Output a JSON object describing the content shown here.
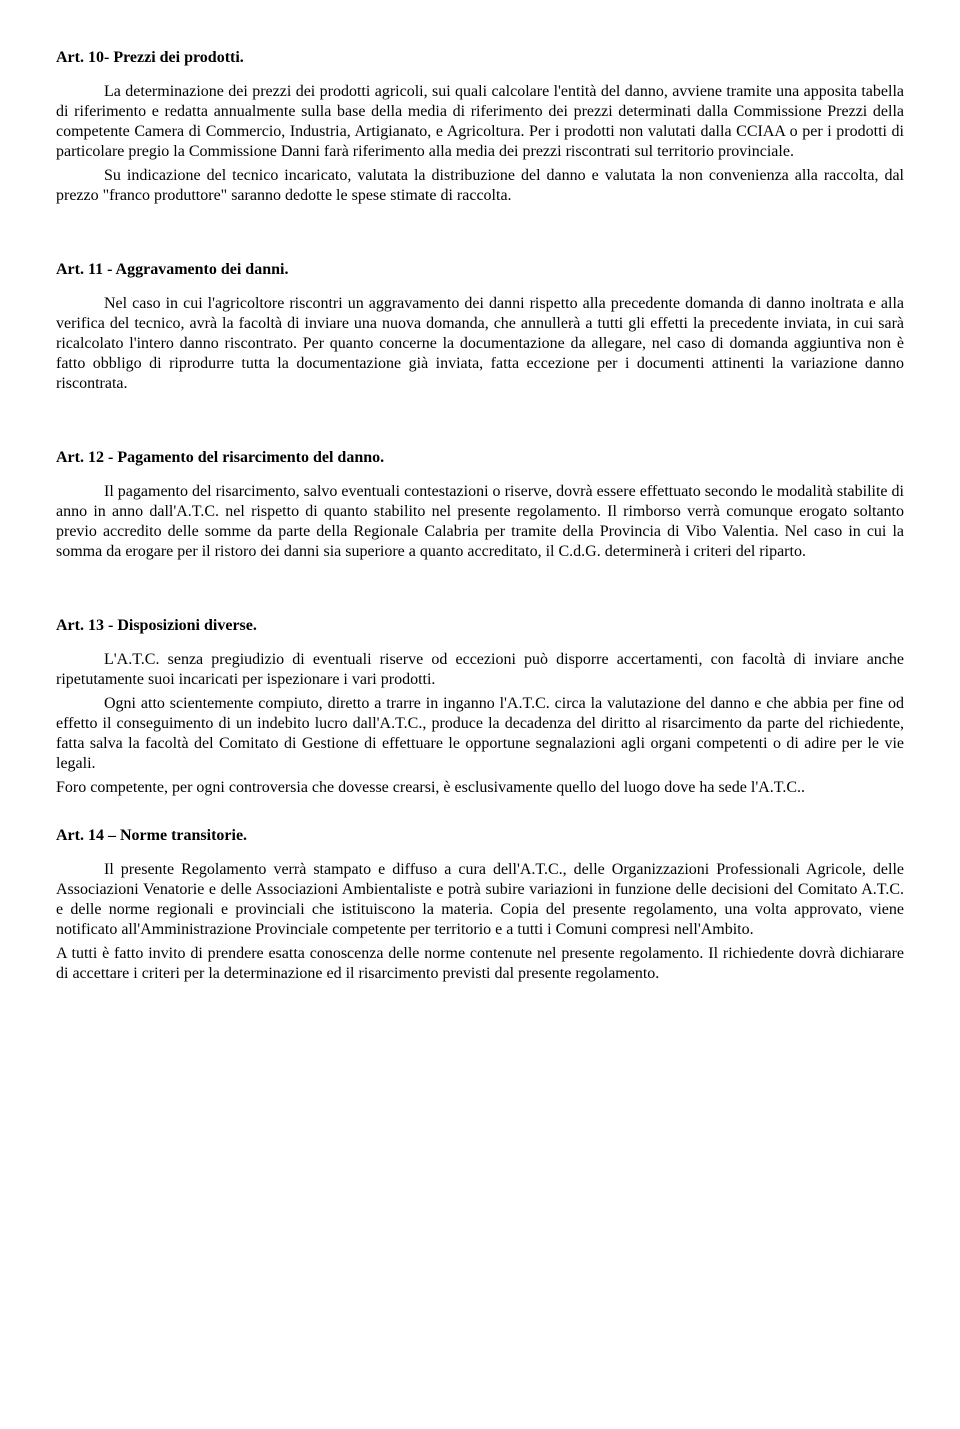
{
  "art10": {
    "title": "Art. 10- Prezzi dei prodotti.",
    "p1": "La determinazione dei prezzi dei prodotti agricoli, sui quali calcolare l'entità del danno, avviene tramite una apposita tabella di riferimento e redatta annualmente sulla base della media di riferimento dei prezzi determinati dalla Commissione Prezzi della competente Camera di Commercio, Industria, Artigianato, e Agricoltura. Per i prodotti non valutati dalla CCIAA o per i prodotti di particolare pregio la Commissione Danni farà riferimento alla media dei  prezzi riscontrati sul territorio provinciale.",
    "p2": "Su indicazione del tecnico incaricato, valutata la distribuzione del danno e valutata la non convenienza alla raccolta, dal prezzo \"franco produttore\" saranno dedotte le spese stimate di raccolta."
  },
  "art11": {
    "title": "Art. 11 - Aggravamento dei danni.",
    "p1": "Nel caso in cui l'agricoltore riscontri un aggravamento dei danni rispetto alla precedente domanda di danno inoltrata e alla verifica del tecnico, avrà la facoltà di inviare una nuova  domanda, che annullerà a tutti gli effetti la precedente inviata, in cui sarà ricalcolato l'intero danno riscontrato. Per quanto concerne la documentazione da allegare, nel caso di domanda aggiuntiva non è fatto obbligo di riprodurre tutta la documentazione già inviata, fatta eccezione per i documenti attinenti la variazione danno riscontrata."
  },
  "art12": {
    "title": "Art. 12 - Pagamento del risarcimento del danno.",
    "p1": "Il pagamento del risarcimento, salvo eventuali contestazioni o riserve, dovrà essere effettuato secondo le modalità stabilite di anno in anno dall'A.T.C. nel rispetto di quanto stabilito nel presente regolamento. Il rimborso verrà comunque erogato soltanto previo accredito delle somme da parte della Regionale Calabria per tramite della Provincia di Vibo Valentia. Nel caso in cui la somma da erogare per il ristoro dei danni sia superiore  a quanto accreditato, il C.d.G. determinerà i criteri del riparto."
  },
  "art13": {
    "title": "Art. 13 - Disposizioni diverse.",
    "p1": "L'A.T.C. senza pregiudizio di eventuali riserve od eccezioni può disporre accertamenti, con facoltà di inviare anche ripetutamente suoi incaricati per ispezionare i vari prodotti.",
    "p2": "Ogni atto scientemente compiuto, diretto a trarre in inganno l'A.T.C. circa la valutazione del danno e che abbia per fine od effetto il conseguimento di un indebito lucro dall'A.T.C., produce la decadenza del diritto al risarcimento da parte del richiedente, fatta salva la facoltà del Comitato di Gestione di effettuare le opportune segnalazioni agli organi competenti o di adire per le vie legali.",
    "p3": "Foro competente, per ogni controversia che dovesse crearsi, è esclusivamente quello del luogo dove ha sede l'A.T.C.."
  },
  "art14": {
    "title": "Art. 14 – Norme transitorie.",
    "p1": "Il presente Regolamento verrà stampato e diffuso a cura dell'A.T.C., delle Organizzazioni Professionali Agricole, delle Associazioni Venatorie e delle Associazioni Ambientaliste e potrà subire variazioni in funzione delle decisioni del Comitato A.T.C.  e delle norme regionali e provinciali che istituiscono la materia. Copia del presente regolamento, una volta approvato, viene notificato all'Amministrazione Provinciale competente per territorio e a tutti i Comuni compresi nell'Ambito.",
    "p2": "A tutti è fatto invito di prendere esatta conoscenza delle norme contenute nel presente regolamento.  Il richiedente dovrà dichiarare di accettare i criteri per la determinazione ed il risarcimento previsti dal presente regolamento."
  }
}
